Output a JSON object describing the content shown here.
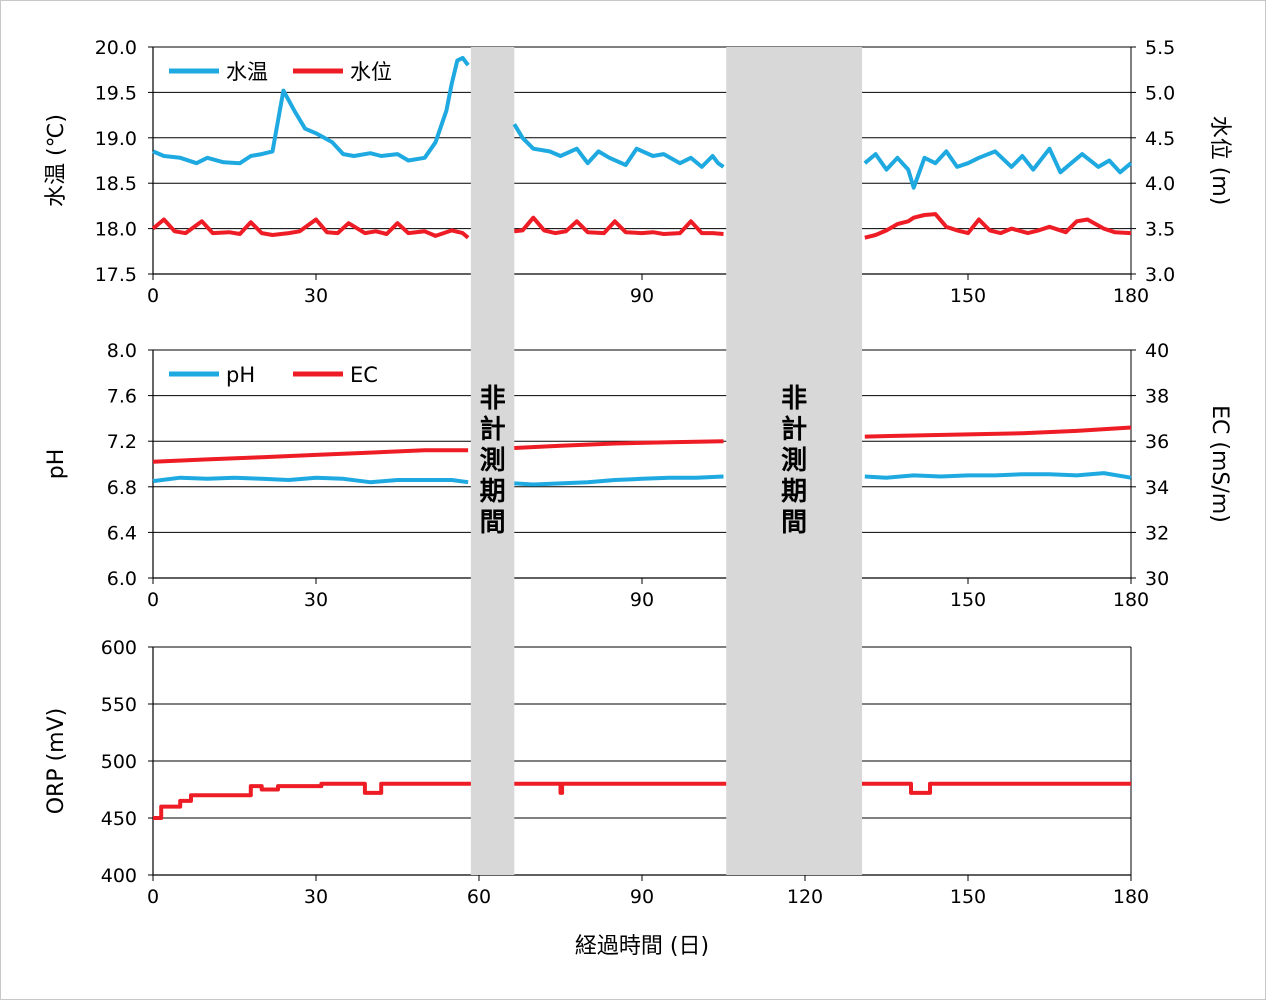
{
  "colors": {
    "blue": "#1fa9e1",
    "red": "#ee1c25",
    "band": "#d8d8d8",
    "grid": "#000000"
  },
  "non_measurement_label": "非計測期間",
  "chart_data": [
    {
      "type": "line",
      "id": "temp_level",
      "xlabel": "",
      "xlim": [
        0,
        180
      ],
      "xticks": [
        "0",
        "30",
        "90",
        "150",
        "180"
      ],
      "ylabel": "水温 (℃)",
      "ylim": [
        17.5,
        20.0
      ],
      "yticks": [
        "17.5",
        "18.0",
        "18.5",
        "19.0",
        "19.5",
        "20.0"
      ],
      "y2label": "水位 (m)",
      "y2lim": [
        3.0,
        5.5
      ],
      "y2ticks": [
        "3.0",
        "3.5",
        "4.0",
        "4.5",
        "5.0",
        "5.5"
      ],
      "non_measurement_periods": [
        [
          58.5,
          66.5
        ],
        [
          105.5,
          130.5
        ]
      ],
      "legend": [
        "水温",
        "水位"
      ],
      "series": [
        {
          "name": "水温",
          "axis": "left",
          "color": "blue",
          "x": [
            0,
            2,
            5,
            8,
            10,
            13,
            16,
            18,
            20,
            22,
            24,
            26,
            28,
            30,
            33,
            35,
            37,
            40,
            42,
            45,
            47,
            50,
            52,
            54,
            55,
            56,
            57,
            58,
            66.5,
            68,
            70,
            73,
            75,
            78,
            80,
            82,
            84,
            87,
            89,
            92,
            94,
            97,
            99,
            101,
            103,
            104,
            105,
            131,
            133,
            135,
            137,
            139,
            140,
            142,
            144,
            146,
            148,
            150,
            152,
            155,
            158,
            160,
            162,
            165,
            167,
            169,
            171,
            174,
            176,
            178,
            180
          ],
          "y": [
            18.85,
            18.8,
            18.78,
            18.72,
            18.78,
            18.73,
            18.72,
            18.8,
            18.82,
            18.85,
            19.52,
            19.3,
            19.1,
            19.05,
            18.95,
            18.82,
            18.8,
            18.83,
            18.8,
            18.82,
            18.75,
            18.78,
            18.95,
            19.3,
            19.6,
            19.85,
            19.88,
            19.8,
            19.15,
            19.0,
            18.88,
            18.85,
            18.8,
            18.88,
            18.72,
            18.85,
            18.78,
            18.7,
            18.88,
            18.8,
            18.82,
            18.72,
            18.78,
            18.68,
            18.8,
            18.72,
            18.68,
            18.72,
            18.82,
            18.65,
            18.78,
            18.65,
            18.45,
            18.78,
            18.72,
            18.85,
            18.68,
            18.72,
            18.78,
            18.85,
            18.68,
            18.8,
            18.65,
            18.88,
            18.62,
            18.72,
            18.82,
            18.68,
            18.75,
            18.62,
            18.72
          ]
        },
        {
          "name": "水位",
          "axis": "right",
          "color": "red",
          "x": [
            0,
            2,
            4,
            6,
            9,
            11,
            14,
            16,
            18,
            20,
            22,
            25,
            27,
            30,
            32,
            34,
            36,
            39,
            41,
            43,
            45,
            47,
            50,
            52,
            55,
            57,
            58,
            66.5,
            68,
            70,
            72,
            74,
            76,
            78,
            80,
            83,
            85,
            87,
            90,
            92,
            94,
            97,
            99,
            101,
            103,
            105,
            131,
            133,
            135,
            137,
            139,
            140,
            142,
            144,
            146,
            148,
            150,
            152,
            154,
            156,
            158,
            161,
            163,
            165,
            168,
            170,
            172,
            175,
            177,
            180
          ],
          "y": [
            3.5,
            3.6,
            3.47,
            3.45,
            3.58,
            3.45,
            3.46,
            3.44,
            3.57,
            3.45,
            3.43,
            3.45,
            3.47,
            3.6,
            3.46,
            3.45,
            3.56,
            3.45,
            3.47,
            3.44,
            3.56,
            3.45,
            3.47,
            3.42,
            3.48,
            3.45,
            3.4,
            3.47,
            3.48,
            3.62,
            3.48,
            3.45,
            3.47,
            3.58,
            3.46,
            3.45,
            3.58,
            3.46,
            3.45,
            3.46,
            3.44,
            3.45,
            3.58,
            3.45,
            3.45,
            3.44,
            3.4,
            3.43,
            3.48,
            3.55,
            3.58,
            3.62,
            3.65,
            3.66,
            3.52,
            3.48,
            3.45,
            3.6,
            3.48,
            3.45,
            3.5,
            3.45,
            3.48,
            3.52,
            3.46,
            3.58,
            3.6,
            3.5,
            3.46,
            3.45
          ]
        }
      ]
    },
    {
      "type": "line",
      "id": "ph_ec",
      "xlabel": "",
      "xlim": [
        0,
        180
      ],
      "xticks": [
        "0",
        "30",
        "90",
        "150",
        "180"
      ],
      "ylabel": "pH",
      "ylim": [
        6.0,
        8.0
      ],
      "yticks": [
        "6.0",
        "6.4",
        "6.8",
        "7.2",
        "7.6",
        "8.0"
      ],
      "y2label": "EC (mS/m)",
      "y2lim": [
        30,
        40
      ],
      "y2ticks": [
        "30",
        "32",
        "34",
        "36",
        "38",
        "40"
      ],
      "non_measurement_periods": [
        [
          58.5,
          66.5
        ],
        [
          105.5,
          130.5
        ]
      ],
      "legend": [
        "pH",
        "EC"
      ],
      "series": [
        {
          "name": "pH",
          "axis": "left",
          "color": "blue",
          "x": [
            0,
            5,
            10,
            15,
            20,
            25,
            30,
            35,
            40,
            45,
            50,
            55,
            58,
            66.5,
            70,
            75,
            80,
            85,
            90,
            95,
            100,
            105,
            131,
            135,
            140,
            145,
            150,
            155,
            160,
            165,
            170,
            175,
            180
          ],
          "y": [
            6.85,
            6.88,
            6.87,
            6.88,
            6.87,
            6.86,
            6.88,
            6.87,
            6.84,
            6.86,
            6.86,
            6.86,
            6.84,
            6.83,
            6.82,
            6.83,
            6.84,
            6.86,
            6.87,
            6.88,
            6.88,
            6.89,
            6.89,
            6.88,
            6.9,
            6.89,
            6.9,
            6.9,
            6.91,
            6.91,
            6.9,
            6.92,
            6.88
          ]
        },
        {
          "name": "EC",
          "axis": "right",
          "color": "red",
          "x": [
            0,
            10,
            20,
            30,
            40,
            50,
            58,
            66.5,
            75,
            85,
            95,
            105,
            131,
            140,
            150,
            160,
            170,
            180
          ],
          "y": [
            35.1,
            35.2,
            35.3,
            35.4,
            35.5,
            35.6,
            35.6,
            35.7,
            35.8,
            35.9,
            35.95,
            36.0,
            36.2,
            36.25,
            36.3,
            36.35,
            36.45,
            36.6
          ]
        }
      ]
    },
    {
      "type": "line",
      "id": "orp",
      "xlabel": "経過時間 (日)",
      "xlim": [
        0,
        180
      ],
      "xticks": [
        "0",
        "30",
        "60",
        "90",
        "120",
        "150",
        "180"
      ],
      "ylabel": "ORP (mV)",
      "ylim": [
        400,
        600
      ],
      "yticks": [
        "400",
        "450",
        "500",
        "550",
        "600"
      ],
      "non_measurement_periods": [
        [
          58.5,
          66.5
        ],
        [
          105.5,
          130.5
        ]
      ],
      "series": [
        {
          "name": "ORP",
          "axis": "left",
          "color": "red",
          "x": [
            0,
            1.5,
            1.5,
            5,
            5,
            7,
            7,
            18,
            18,
            20,
            20,
            23,
            23,
            31,
            31,
            39,
            39,
            42,
            42,
            58.5,
            66.5,
            75,
            75,
            75.3,
            75.3,
            105.5,
            130.5,
            139.5,
            139.5,
            143,
            143,
            180
          ],
          "y": [
            450,
            450,
            460,
            460,
            465,
            465,
            470,
            470,
            478,
            478,
            475,
            475,
            478,
            478,
            480,
            480,
            472,
            472,
            480,
            480,
            480,
            480,
            472,
            472,
            480,
            480,
            480,
            480,
            472,
            472,
            480,
            480
          ]
        }
      ]
    }
  ]
}
